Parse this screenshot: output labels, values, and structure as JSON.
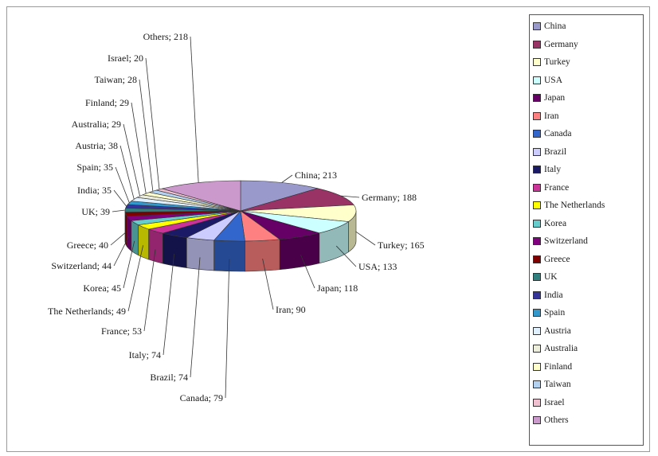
{
  "chart_data": {
    "type": "pie",
    "title": "",
    "slices": [
      {
        "name": "China",
        "value": 213,
        "label": "China; 213",
        "color": "#9999cc"
      },
      {
        "name": "Germany",
        "value": 188,
        "label": "Germany; 188",
        "color": "#993366"
      },
      {
        "name": "Turkey",
        "value": 165,
        "label": "Turkey; 165",
        "color": "#ffffcc"
      },
      {
        "name": "USA",
        "value": 133,
        "label": "USA; 133",
        "color": "#ccffff"
      },
      {
        "name": "Japan",
        "value": 118,
        "label": "Japan; 118",
        "color": "#660066"
      },
      {
        "name": "Iran",
        "value": 90,
        "label": "Iran; 90",
        "color": "#ff8080"
      },
      {
        "name": "Canada",
        "value": 79,
        "label": "Canada; 79",
        "color": "#3366cc"
      },
      {
        "name": "Brazil",
        "value": 74,
        "label": "Brazil; 74",
        "color": "#ccccff"
      },
      {
        "name": "Italy",
        "value": 74,
        "label": "Italy; 74",
        "color": "#1a1a66"
      },
      {
        "name": "France",
        "value": 53,
        "label": "France; 53",
        "color": "#cc3399"
      },
      {
        "name": "The Netherlands",
        "value": 49,
        "label": "The Netherlands; 49",
        "color": "#ffff00"
      },
      {
        "name": "Korea",
        "value": 45,
        "label": "Korea; 45",
        "color": "#66cccc"
      },
      {
        "name": "Switzerland",
        "value": 44,
        "label": "Switzerland; 44",
        "color": "#800080"
      },
      {
        "name": "Greece",
        "value": 40,
        "label": "Greece; 40",
        "color": "#800000"
      },
      {
        "name": "UK",
        "value": 39,
        "label": "UK; 39",
        "color": "#2f7f7f"
      },
      {
        "name": "India",
        "value": 35,
        "label": "India; 35",
        "color": "#333399"
      },
      {
        "name": "Spain",
        "value": 35,
        "label": "Spain; 35",
        "color": "#3399cc"
      },
      {
        "name": "Austria",
        "value": 38,
        "label": "Austria; 38",
        "color": "#e0f0ff"
      },
      {
        "name": "Australia",
        "value": 29,
        "label": "Australia; 29",
        "color": "#eeeedd"
      },
      {
        "name": "Finland",
        "value": 29,
        "label": "Finland; 29",
        "color": "#ffffcc"
      },
      {
        "name": "Taiwan",
        "value": 28,
        "label": "Taiwan; 28",
        "color": "#b3d1f0"
      },
      {
        "name": "Israel",
        "value": 20,
        "label": "Israel; 20",
        "color": "#f0c0d0"
      },
      {
        "name": "Others",
        "value": 218,
        "label": "Others; 218",
        "color": "#cc99cc"
      }
    ],
    "legend_position": "right"
  }
}
